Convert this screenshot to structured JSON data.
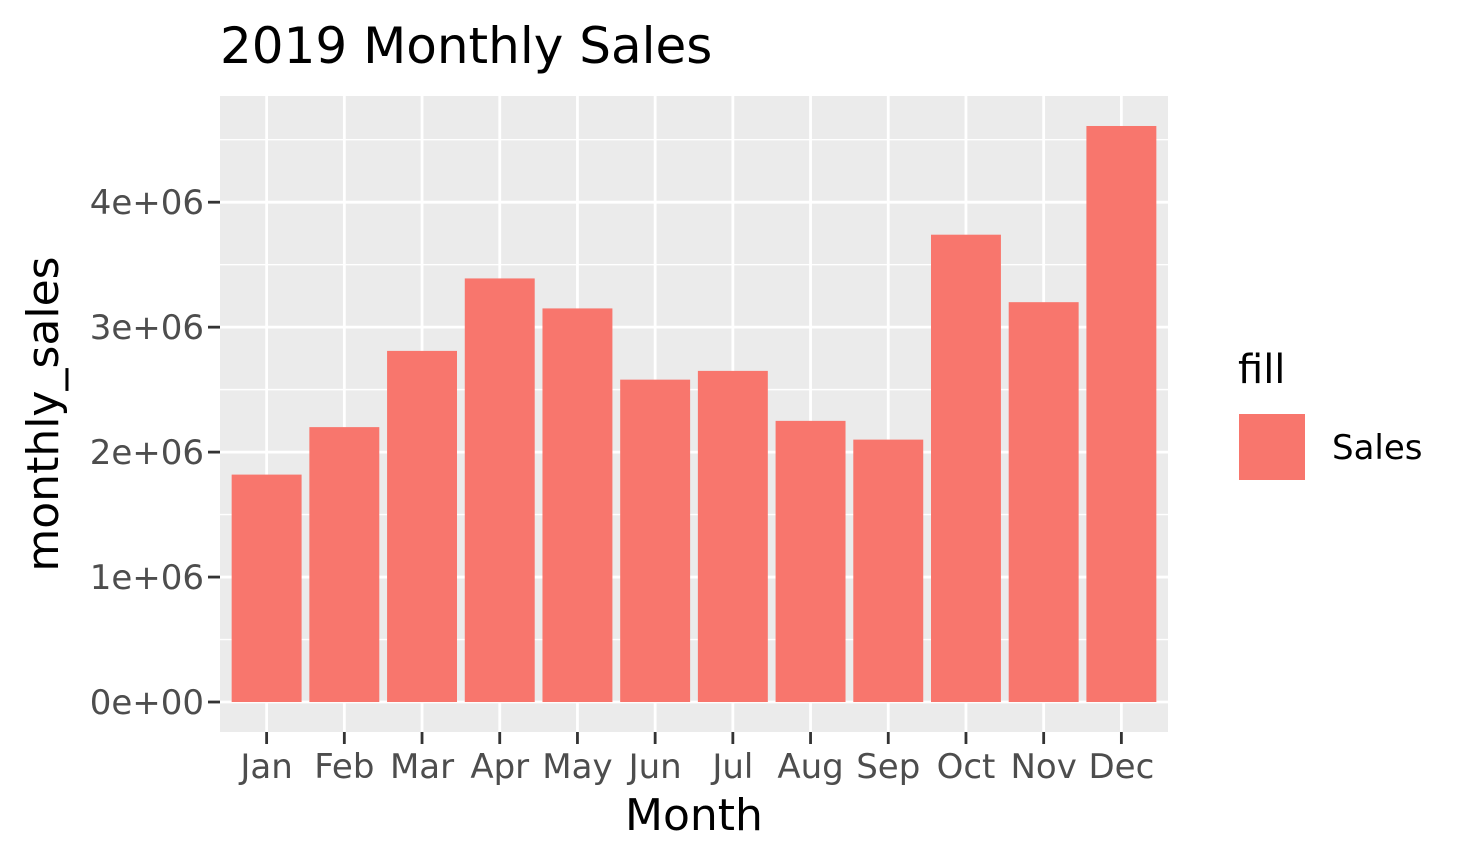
{
  "chart_data": {
    "type": "bar",
    "title": "2019 Monthly Sales",
    "xlabel": "Month",
    "ylabel": "monthly_sales",
    "categories": [
      "Jan",
      "Feb",
      "Mar",
      "Apr",
      "May",
      "Jun",
      "Jul",
      "Aug",
      "Sep",
      "Oct",
      "Nov",
      "Dec"
    ],
    "series": [
      {
        "name": "Sales",
        "color": "#F8766D",
        "values": [
          1820000,
          2200000,
          2810000,
          3390000,
          3150000,
          2580000,
          2650000,
          2250000,
          2100000,
          3740000,
          3200000,
          4610000
        ]
      }
    ],
    "ylim": [
      -240000,
      4850000
    ],
    "yticks": [
      0,
      1000000,
      2000000,
      3000000,
      4000000
    ],
    "ytick_labels": [
      "0e+00",
      "1e+06",
      "2e+06",
      "3e+06",
      "4e+06"
    ],
    "grid": true,
    "panel_background": "#EBEBEB",
    "legend": {
      "title": "fill",
      "placement": "right",
      "entries": [
        {
          "label": "Sales",
          "color": "#F8766D"
        }
      ]
    }
  }
}
